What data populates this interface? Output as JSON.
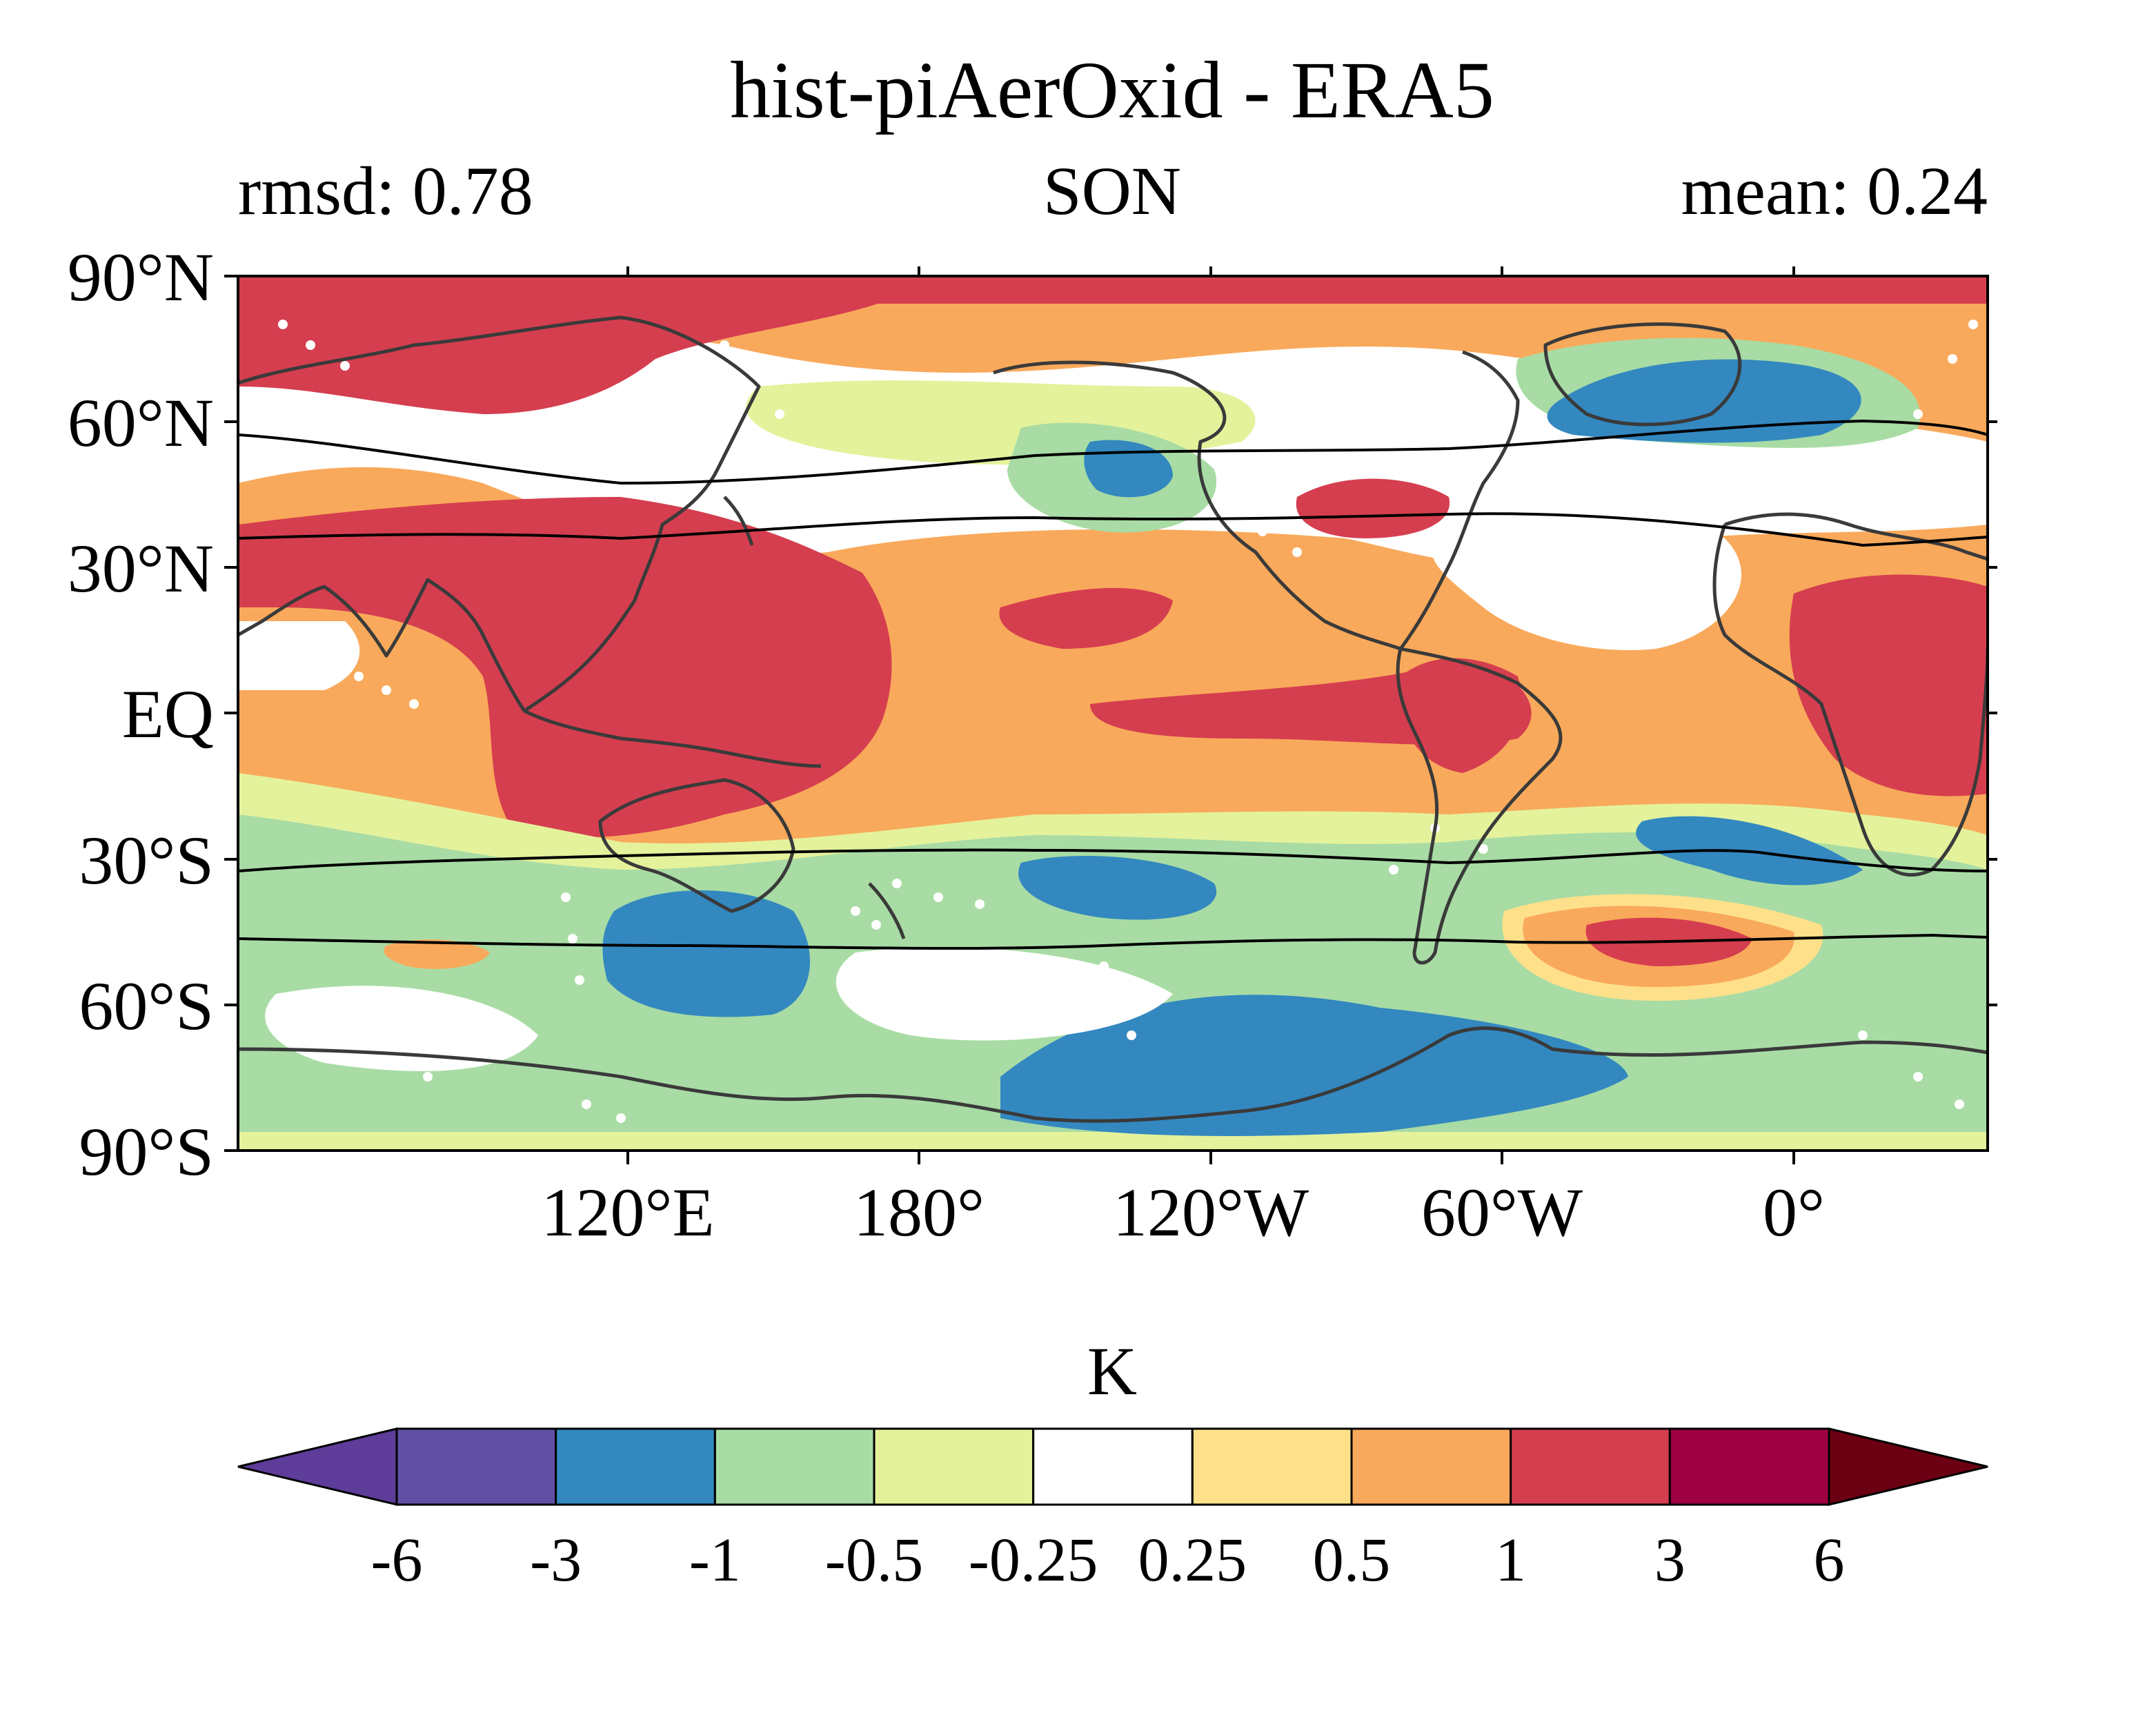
{
  "title": "hist-piAerOxid - ERA5",
  "subtitle_left": "rmsd: 0.78",
  "subtitle_center": "SON",
  "subtitle_right": "mean: 0.24",
  "lat_labels": [
    "90°N",
    "60°N",
    "30°N",
    "EQ",
    "30°S",
    "60°S",
    "90°S"
  ],
  "lon_labels": [
    "120°E",
    "180°",
    "120°W",
    "60°W",
    "0°"
  ],
  "colorbar": {
    "units": "K",
    "tick_labels": [
      "-6",
      "-3",
      "-1",
      "-0.5",
      "-0.25",
      "0.25",
      "0.5",
      "1",
      "3",
      "6"
    ],
    "levels": [
      -6,
      -3,
      -1,
      -0.5,
      -0.25,
      0.25,
      0.5,
      1,
      3,
      6
    ],
    "colors": [
      "#5e3c99",
      "#6050a4",
      "#3388c0",
      "#a8dca4",
      "#e4f29c",
      "#ffffff",
      "#fee08b",
      "#f9a95b",
      "#d53e4f",
      "#9e0142",
      "#6b0012"
    ]
  },
  "palette": {
    "strong_warm": "#d53e4f",
    "warm": "#f9a95b",
    "light_warm": "#fee08b",
    "neutral": "#ffffff",
    "light_cool": "#e4f29c",
    "cool": "#a8dca4",
    "strong_cool": "#3388c0",
    "coast": "#3a3a3a"
  }
}
